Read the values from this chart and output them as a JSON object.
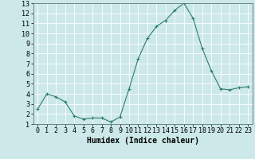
{
  "x": [
    0,
    1,
    2,
    3,
    4,
    5,
    6,
    7,
    8,
    9,
    10,
    11,
    12,
    13,
    14,
    15,
    16,
    17,
    18,
    19,
    20,
    21,
    22,
    23
  ],
  "y": [
    2.5,
    4.0,
    3.7,
    3.2,
    1.8,
    1.5,
    1.6,
    1.6,
    1.2,
    1.7,
    4.5,
    7.5,
    9.5,
    10.7,
    11.3,
    12.3,
    13.0,
    11.5,
    8.5,
    6.3,
    4.5,
    4.4,
    4.6,
    4.7
  ],
  "line_color": "#2e7d6e",
  "marker": "+",
  "marker_size": 3,
  "bg_color": "#cce8e8",
  "grid_color": "#ffffff",
  "xlabel": "Humidex (Indice chaleur)",
  "ylim": [
    1,
    13
  ],
  "xlim": [
    -0.5,
    23.5
  ],
  "yticks": [
    1,
    2,
    3,
    4,
    5,
    6,
    7,
    8,
    9,
    10,
    11,
    12,
    13
  ],
  "xticks": [
    0,
    1,
    2,
    3,
    4,
    5,
    6,
    7,
    8,
    9,
    10,
    11,
    12,
    13,
    14,
    15,
    16,
    17,
    18,
    19,
    20,
    21,
    22,
    23
  ],
  "tick_fontsize": 6,
  "xlabel_fontsize": 7,
  "figsize": [
    3.2,
    2.0
  ],
  "dpi": 100
}
